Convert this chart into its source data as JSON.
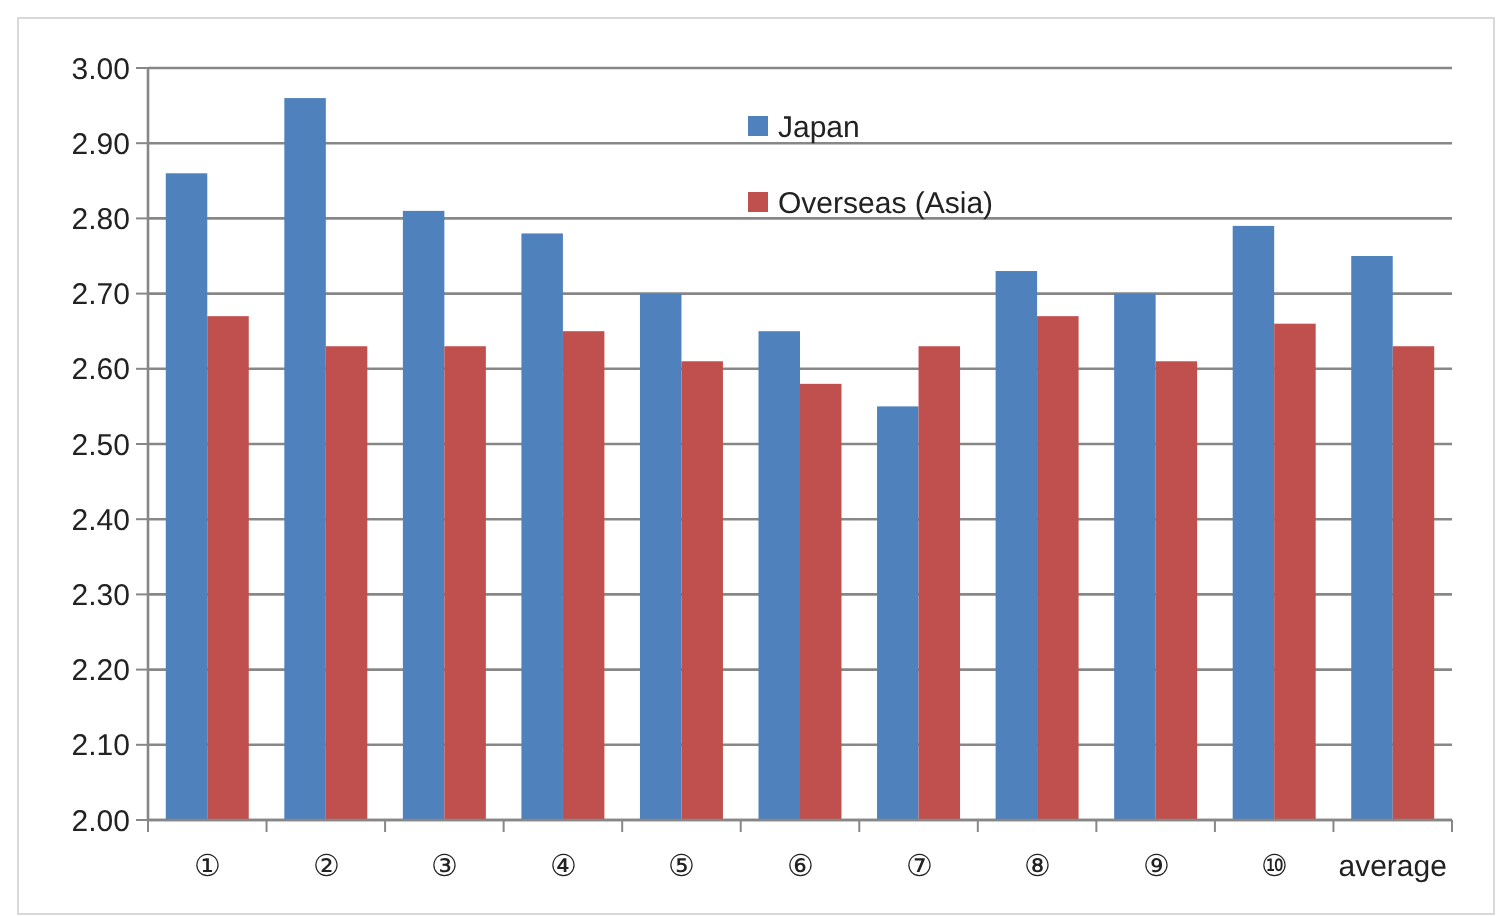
{
  "chart_data": {
    "type": "bar",
    "categories": [
      "①",
      "②",
      "③",
      "④",
      "⑤",
      "⑥",
      "⑦",
      "⑧",
      "⑨",
      "⑩",
      "average"
    ],
    "series": [
      {
        "name": "Japan",
        "color": "#4f81bd",
        "values": [
          2.86,
          2.96,
          2.81,
          2.78,
          2.7,
          2.65,
          2.55,
          2.73,
          2.7,
          2.79,
          2.75
        ]
      },
      {
        "name": "Overseas (Asia)",
        "color": "#c0504d",
        "values": [
          2.67,
          2.63,
          2.63,
          2.65,
          2.61,
          2.58,
          2.63,
          2.67,
          2.61,
          2.66,
          2.63
        ]
      }
    ],
    "ylim": [
      2,
      3
    ],
    "yticks": [
      {
        "value": 2,
        "label": "2.00"
      },
      {
        "value": 2.1,
        "label": "2.10"
      },
      {
        "value": 2.2,
        "label": "2.20"
      },
      {
        "value": 2.3,
        "label": "2.30"
      },
      {
        "value": 2.4,
        "label": "2.40"
      },
      {
        "value": 2.5,
        "label": "2.50"
      },
      {
        "value": 2.6,
        "label": "2.60"
      },
      {
        "value": 2.7,
        "label": "2.70"
      },
      {
        "value": 2.8,
        "label": "2.80"
      },
      {
        "value": 2.9,
        "label": "2.90"
      },
      {
        "value": 3,
        "label": "3.00"
      }
    ],
    "grid": "y",
    "legend": "top"
  }
}
